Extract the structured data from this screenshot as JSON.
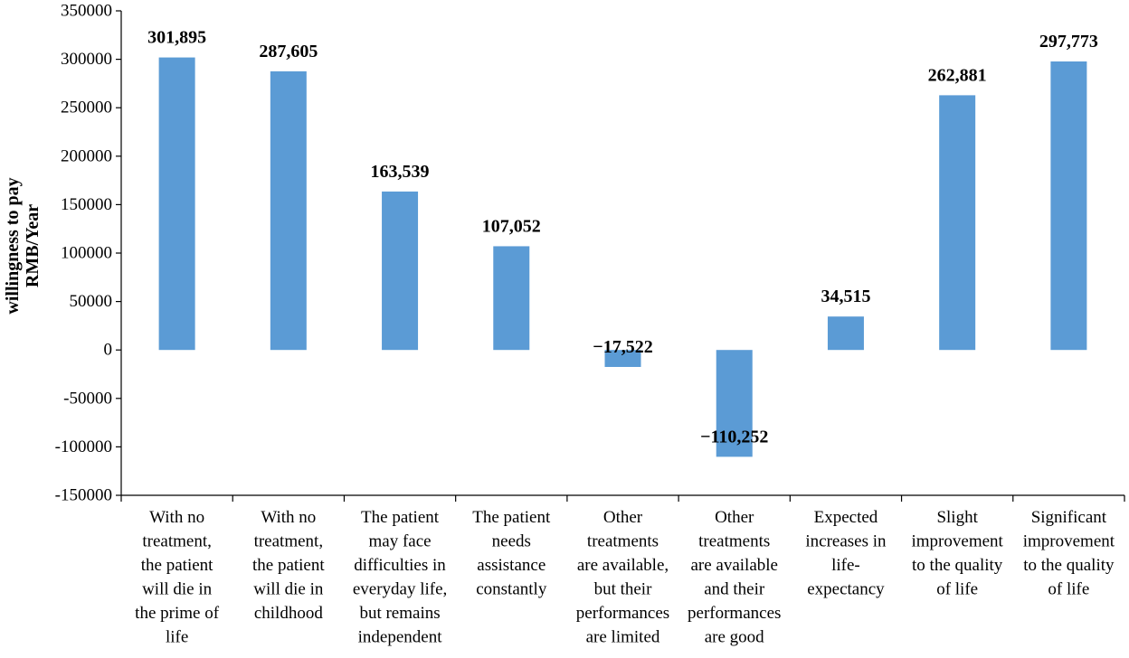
{
  "chart_data": {
    "type": "bar",
    "categories": [
      [
        "With no",
        "treatment,",
        "the patient",
        "will die in",
        "the prime of",
        "life"
      ],
      [
        "With no",
        "treatment,",
        "the patient",
        "will die in",
        "childhood"
      ],
      [
        "The patient",
        "may face",
        "difficulties in",
        "everyday life,",
        "but remains",
        "independent"
      ],
      [
        "The patient",
        "needs",
        "assistance",
        "constantly"
      ],
      [
        "Other",
        "treatments",
        "are available,",
        "but their",
        "performances",
        "are limited"
      ],
      [
        "Other",
        "treatments",
        "are available",
        "and their",
        "performances",
        "are good"
      ],
      [
        "Expected",
        "increases in",
        "life-",
        "expectancy"
      ],
      [
        "Slight",
        "improvement",
        "to the quality",
        "of life"
      ],
      [
        "Significant",
        "improvement",
        "to the quality",
        "of life"
      ]
    ],
    "values": [
      301895,
      287605,
      163539,
      107052,
      -17522,
      -110252,
      34515,
      262881,
      297773
    ],
    "value_labels": [
      "301,895",
      "287,605",
      "163,539",
      "107,052",
      "−17,522",
      "−110,252",
      "34,515",
      "262,881",
      "297,773"
    ],
    "ylabel_lines": [
      "willingness to pay",
      "RMB/Year"
    ],
    "ylim": [
      -150000,
      350000
    ],
    "yticks": [
      -150000,
      -100000,
      -50000,
      0,
      50000,
      100000,
      150000,
      200000,
      250000,
      300000,
      350000
    ],
    "bar_color": "#5b9bd5",
    "axis_color": "#000000",
    "grid": false
  }
}
